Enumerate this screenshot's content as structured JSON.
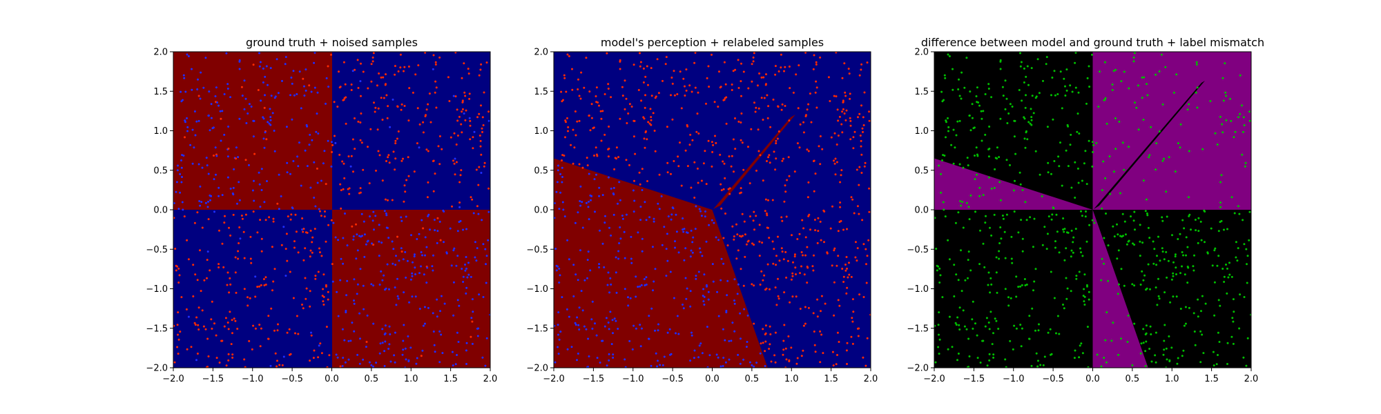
{
  "chart_data": [
    {
      "type": "scatter",
      "title": "ground truth + noised samples",
      "xlim": [
        -2.0,
        2.0
      ],
      "ylim": [
        -2.0,
        2.0
      ],
      "xticks": [
        "−2.0",
        "−1.5",
        "−1.0",
        "−0.5",
        "0.0",
        "0.5",
        "1.0",
        "1.5",
        "2.0"
      ],
      "yticks": [
        "−2.0",
        "−1.5",
        "−1.0",
        "−0.5",
        "0.0",
        "0.5",
        "1.0",
        "1.5",
        "2.0"
      ],
      "background": "xor quadrants: upper-left and lower-right dark red, upper-right and lower-left dark blue",
      "regions": [
        {
          "name": "quadrant x<0,y>0",
          "color": "#800000"
        },
        {
          "name": "quadrant x>0,y>0",
          "color": "#000080"
        },
        {
          "name": "quadrant x<0,y<0",
          "color": "#000080"
        },
        {
          "name": "quadrant x>0,y<0",
          "color": "#800000"
        }
      ],
      "series": [
        {
          "values": "~1000 uniform samples in [-2,2]^2, red points mostly in blue regions",
          "color": "#ff2a00"
        },
        {
          "values": "blue points mostly in red regions",
          "color": "#1f2fff"
        }
      ],
      "grid": false
    },
    {
      "type": "scatter",
      "title": "model's perception + relabeled samples",
      "xlim": [
        -2.0,
        2.0
      ],
      "ylim": [
        -2.0,
        2.0
      ],
      "xticks": [
        "−2.0",
        "−1.5",
        "−1.0",
        "−0.5",
        "0.0",
        "0.5",
        "1.0",
        "1.5",
        "2.0"
      ],
      "yticks": [
        "−2.0",
        "−1.5",
        "−1.0",
        "−0.5",
        "0.0",
        "0.5",
        "1.0",
        "1.5",
        "2.0"
      ],
      "background": "blue everywhere except lower-left wedge (dark red) bounded by lines from origin to (-2,0.65) and (0.7,-2); thin dark red sliver from (0,0) toward (1.05,1.2)",
      "regions": [
        {
          "name": "blue class",
          "color": "#000080"
        },
        {
          "name": "red class wedge",
          "color": "#800000"
        }
      ],
      "series": [
        {
          "values": "red points lie in the blue region",
          "color": "#ff2a00"
        },
        {
          "values": "blue points lie in the red region",
          "color": "#1f2fff"
        }
      ],
      "grid": false
    },
    {
      "type": "scatter",
      "title": "difference between model and ground truth + label mismatch",
      "xlim": [
        -2.0,
        2.0
      ],
      "ylim": [
        -2.0,
        2.0
      ],
      "xticks": [
        "−2.0",
        "−1.5",
        "−1.0",
        "−0.5",
        "0.0",
        "0.5",
        "1.0",
        "1.5",
        "2.0"
      ],
      "yticks": [
        "−2.0",
        "−1.5",
        "−1.0",
        "−0.5",
        "0.0",
        "0.5",
        "1.0",
        "1.5",
        "2.0"
      ],
      "background": "black where model agrees, purple where it differs: upper-right quadrant, wedge between (-2,0.65) and x-axis, wedge between negative y-axis and (0.7,-2)",
      "regions": [
        {
          "name": "agreement",
          "color": "#000000"
        },
        {
          "name": "mismatch",
          "color": "#800080"
        }
      ],
      "series": [
        {
          "values": "green points mark label mismatches",
          "color": "#00c000"
        }
      ],
      "grid": false
    }
  ]
}
